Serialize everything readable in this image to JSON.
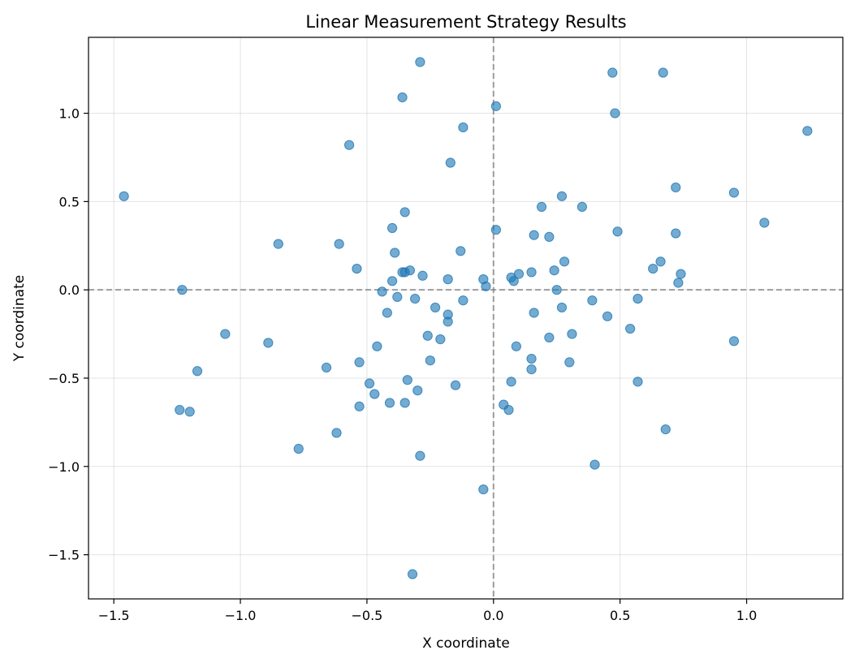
{
  "chart_data": {
    "type": "scatter",
    "title": "Linear Measurement Strategy Results",
    "xlabel": "X coordinate",
    "ylabel": "Y coordinate",
    "xlim": [
      -1.6,
      1.38
    ],
    "ylim": [
      -1.75,
      1.43
    ],
    "xticks": [
      -1.5,
      -1.0,
      -0.5,
      0.0,
      0.5,
      1.0
    ],
    "xtick_labels": [
      "−1.5",
      "−1.0",
      "−0.5",
      "0.0",
      "0.5",
      "1.0"
    ],
    "yticks": [
      -1.5,
      -1.0,
      -0.5,
      0.0,
      0.5,
      1.0
    ],
    "ytick_labels": [
      "−1.5",
      "−1.0",
      "−0.5",
      "0.0",
      "0.5",
      "1.0"
    ],
    "grid": true,
    "reference_lines": {
      "x": 0,
      "y": 0
    },
    "point_color": "#1f77b4",
    "points": [
      {
        "x": -1.46,
        "y": 0.53
      },
      {
        "x": -1.23,
        "y": 0.0
      },
      {
        "x": -1.24,
        "y": -0.68
      },
      {
        "x": -1.2,
        "y": -0.69
      },
      {
        "x": -1.17,
        "y": -0.46
      },
      {
        "x": -1.06,
        "y": -0.25
      },
      {
        "x": -0.89,
        "y": -0.3
      },
      {
        "x": -0.85,
        "y": 0.26
      },
      {
        "x": -0.77,
        "y": -0.9
      },
      {
        "x": -0.66,
        "y": -0.44
      },
      {
        "x": -0.62,
        "y": -0.81
      },
      {
        "x": -0.61,
        "y": 0.26
      },
      {
        "x": -0.57,
        "y": 0.82
      },
      {
        "x": -0.54,
        "y": 0.12
      },
      {
        "x": -0.53,
        "y": -0.41
      },
      {
        "x": -0.53,
        "y": -0.66
      },
      {
        "x": -0.49,
        "y": -0.53
      },
      {
        "x": -0.47,
        "y": -0.59
      },
      {
        "x": -0.46,
        "y": -0.32
      },
      {
        "x": -0.44,
        "y": -0.01
      },
      {
        "x": -0.42,
        "y": -0.13
      },
      {
        "x": -0.41,
        "y": -0.64
      },
      {
        "x": -0.4,
        "y": 0.35
      },
      {
        "x": -0.4,
        "y": 0.05
      },
      {
        "x": -0.39,
        "y": 0.21
      },
      {
        "x": -0.38,
        "y": -0.04
      },
      {
        "x": -0.36,
        "y": 1.09
      },
      {
        "x": -0.36,
        "y": 0.1
      },
      {
        "x": -0.35,
        "y": 0.1
      },
      {
        "x": -0.35,
        "y": -0.64
      },
      {
        "x": -0.35,
        "y": 0.44
      },
      {
        "x": -0.34,
        "y": -0.51
      },
      {
        "x": -0.33,
        "y": 0.11
      },
      {
        "x": -0.32,
        "y": -1.61
      },
      {
        "x": -0.31,
        "y": -0.05
      },
      {
        "x": -0.3,
        "y": -0.57
      },
      {
        "x": -0.29,
        "y": 1.29
      },
      {
        "x": -0.29,
        "y": -0.94
      },
      {
        "x": -0.28,
        "y": 0.08
      },
      {
        "x": -0.26,
        "y": -0.26
      },
      {
        "x": -0.25,
        "y": -0.4
      },
      {
        "x": -0.23,
        "y": -0.1
      },
      {
        "x": -0.21,
        "y": -0.28
      },
      {
        "x": -0.18,
        "y": -0.18
      },
      {
        "x": -0.18,
        "y": -0.14
      },
      {
        "x": -0.18,
        "y": 0.06
      },
      {
        "x": -0.17,
        "y": 0.72
      },
      {
        "x": -0.15,
        "y": -0.54
      },
      {
        "x": -0.13,
        "y": 0.22
      },
      {
        "x": -0.12,
        "y": 0.92
      },
      {
        "x": -0.12,
        "y": -0.06
      },
      {
        "x": -0.04,
        "y": 0.06
      },
      {
        "x": -0.04,
        "y": -1.13
      },
      {
        "x": -0.03,
        "y": 0.02
      },
      {
        "x": 0.01,
        "y": 1.04
      },
      {
        "x": 0.01,
        "y": 0.34
      },
      {
        "x": 0.04,
        "y": -0.65
      },
      {
        "x": 0.06,
        "y": -0.68
      },
      {
        "x": 0.07,
        "y": 0.07
      },
      {
        "x": 0.07,
        "y": -0.52
      },
      {
        "x": 0.08,
        "y": 0.05
      },
      {
        "x": 0.09,
        "y": -0.32
      },
      {
        "x": 0.1,
        "y": 0.09
      },
      {
        "x": 0.15,
        "y": 0.1
      },
      {
        "x": 0.15,
        "y": -0.39
      },
      {
        "x": 0.15,
        "y": -0.45
      },
      {
        "x": 0.16,
        "y": 0.31
      },
      {
        "x": 0.16,
        "y": -0.13
      },
      {
        "x": 0.19,
        "y": 0.47
      },
      {
        "x": 0.22,
        "y": 0.3
      },
      {
        "x": 0.22,
        "y": -0.27
      },
      {
        "x": 0.24,
        "y": 0.11
      },
      {
        "x": 0.25,
        "y": 0.0
      },
      {
        "x": 0.27,
        "y": 0.53
      },
      {
        "x": 0.27,
        "y": -0.1
      },
      {
        "x": 0.28,
        "y": 0.16
      },
      {
        "x": 0.3,
        "y": -0.41
      },
      {
        "x": 0.31,
        "y": -0.25
      },
      {
        "x": 0.35,
        "y": 0.47
      },
      {
        "x": 0.39,
        "y": -0.06
      },
      {
        "x": 0.4,
        "y": -0.99
      },
      {
        "x": 0.45,
        "y": -0.15
      },
      {
        "x": 0.47,
        "y": 1.23
      },
      {
        "x": 0.48,
        "y": 1.0
      },
      {
        "x": 0.49,
        "y": 0.33
      },
      {
        "x": 0.54,
        "y": -0.22
      },
      {
        "x": 0.57,
        "y": -0.05
      },
      {
        "x": 0.57,
        "y": -0.52
      },
      {
        "x": 0.63,
        "y": 0.12
      },
      {
        "x": 0.66,
        "y": 0.16
      },
      {
        "x": 0.67,
        "y": 1.23
      },
      {
        "x": 0.68,
        "y": -0.79
      },
      {
        "x": 0.72,
        "y": 0.58
      },
      {
        "x": 0.72,
        "y": 0.32
      },
      {
        "x": 0.73,
        "y": 0.04
      },
      {
        "x": 0.74,
        "y": 0.09
      },
      {
        "x": 0.95,
        "y": 0.55
      },
      {
        "x": 0.95,
        "y": -0.29
      },
      {
        "x": 1.07,
        "y": 0.38
      },
      {
        "x": 1.24,
        "y": 0.9
      }
    ]
  }
}
